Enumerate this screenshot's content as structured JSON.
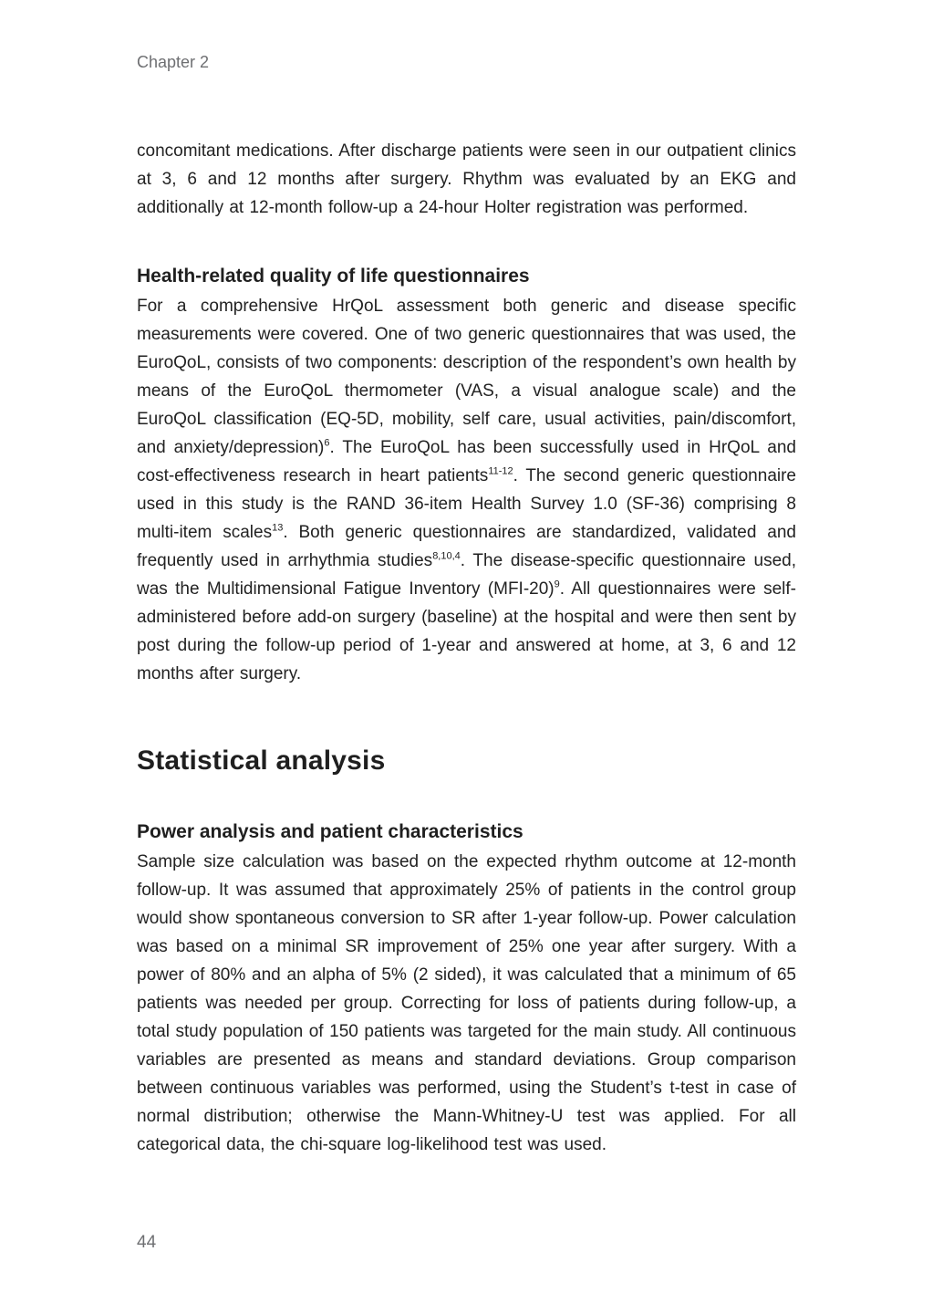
{
  "colors": {
    "background": "#ffffff",
    "body_text": "#222222",
    "heading_text": "#1f1f1f",
    "muted_text": "#6e6f72"
  },
  "header": {
    "chapter_label": "Chapter 2"
  },
  "footer": {
    "page_number": "44"
  },
  "content": {
    "intro_para": [
      {
        "t": "concomitant medications. After discharge patients were seen in our outpatient clinics at 3, 6 and 12 months after surgery. Rhythm was evaluated by an EKG and additionally at 12-month follow-up a 24-hour Holter registration was performed."
      }
    ],
    "hrqol_heading": "Health-related quality of life questionnaires",
    "hrqol_para": [
      {
        "t": "For a comprehensive HrQoL assessment both generic and disease specific measurements were covered. One of two generic questionnaires that was used, the EuroQoL, consists of two components: description of the respondent’s own health by means of the EuroQoL thermometer (VAS, a visual analogue scale) and the EuroQoL classification (EQ-5D, mobility, self care, usual activities, pain/discomfort, and anxiety/depression)"
      },
      {
        "s": "6"
      },
      {
        "t": ". The EuroQoL has been successfully used in HrQoL and cost-effectiveness research in heart patients"
      },
      {
        "s": "11-12"
      },
      {
        "t": ". The second generic questionnaire used in this study is the RAND 36-item Health Survey 1.0 (SF-36) comprising 8 multi-item scales"
      },
      {
        "s": "13"
      },
      {
        "t": ". Both generic questionnaires are standardized, validated and frequently used in arrhythmia studies"
      },
      {
        "s": "8,10,4"
      },
      {
        "t": ". The disease-specific questionnaire used, was the Multidimensional Fatigue Inventory (MFI-20)"
      },
      {
        "s": "9"
      },
      {
        "t": ". All questionnaires were self-administered before add-on surgery (baseline) at the hospital and were then sent by post during the follow-up period of 1-year and answered at home, at 3, 6 and 12 months after surgery."
      }
    ],
    "stats_heading": "Statistical analysis",
    "power_heading": "Power analysis and patient characteristics",
    "power_para": [
      {
        "t": "Sample size calculation was based on the expected rhythm outcome at 12-month follow-up. It was assumed that approximately 25% of patients in the control group would show spontaneous conversion to SR after 1-year follow-up. Power calculation was based on a minimal SR improvement of 25% one year after surgery. With a power of 80% and an alpha of 5% (2 sided), it was calculated that a minimum of 65 patients was needed per group. Correcting for loss of patients during follow-up, a total study population of 150 patients was targeted for the main study. All continuous variables are presented as means and standard deviations. Group comparison between continuous variables was performed, using the Student’s t-test in case of normal distribution; otherwise the Mann-Whitney-U test was applied. For all categorical data, the chi-square log-likelihood test was used."
      }
    ]
  }
}
